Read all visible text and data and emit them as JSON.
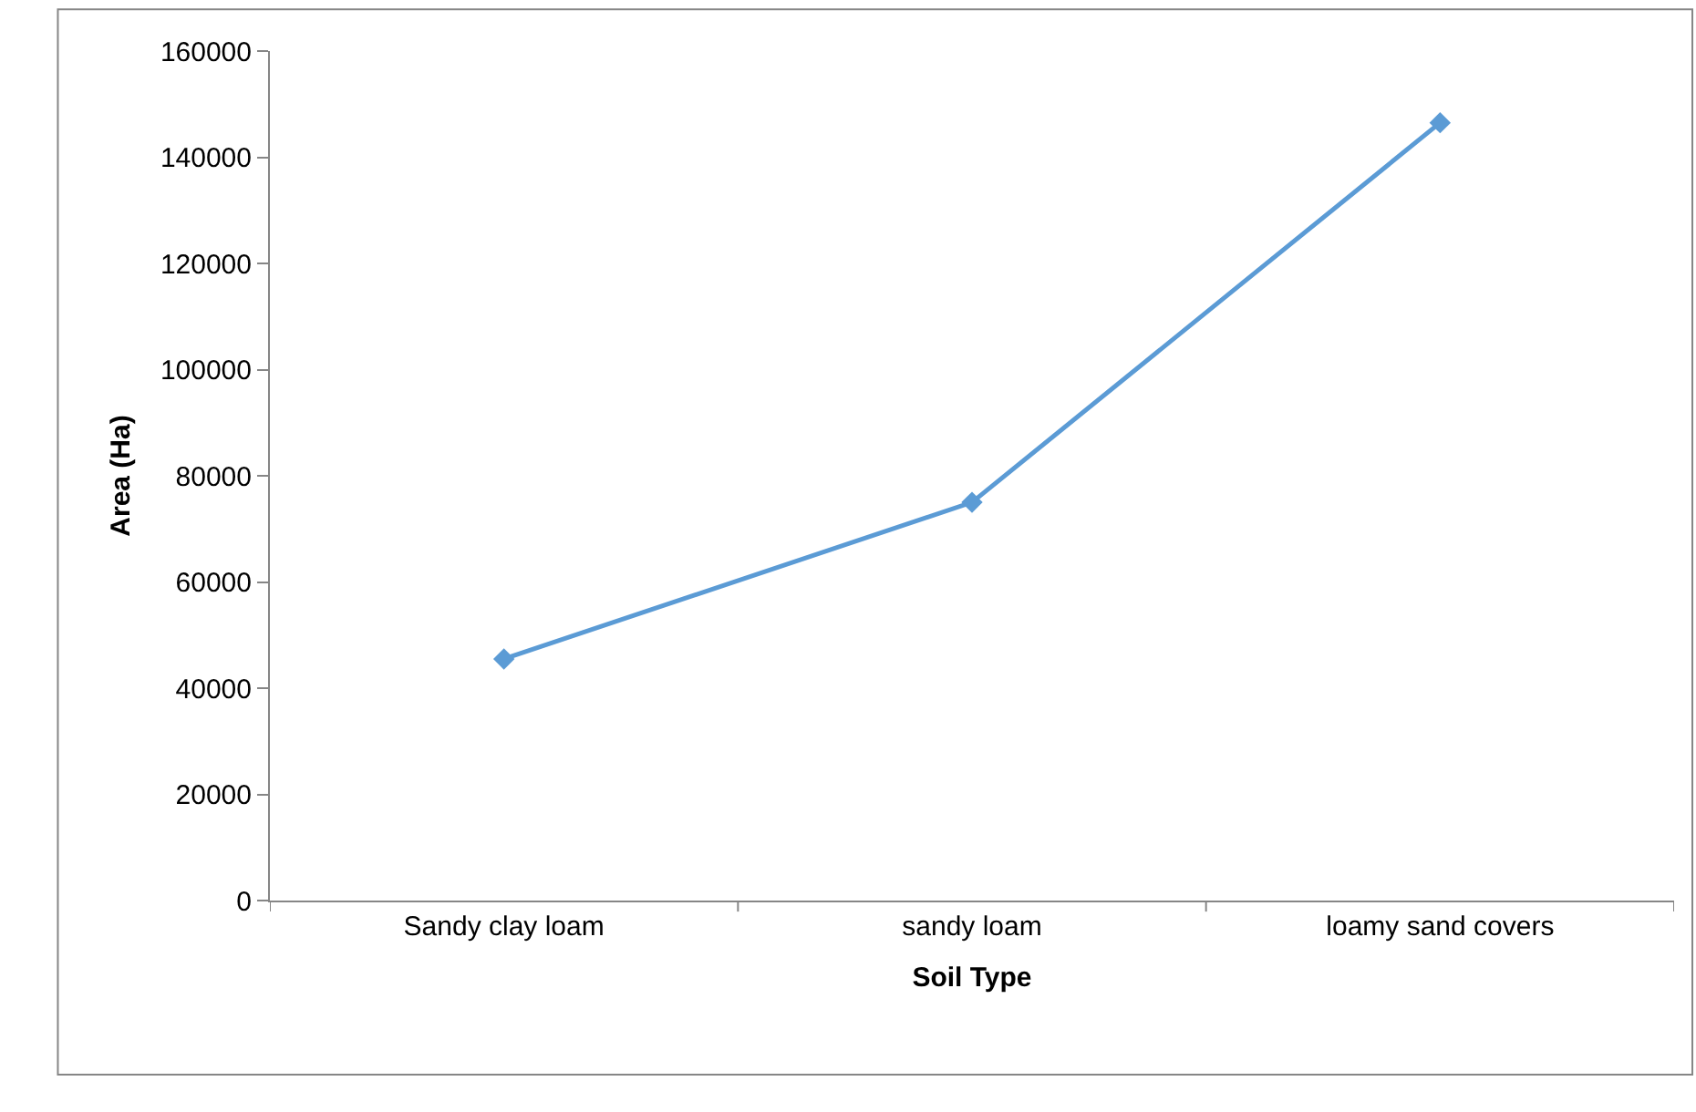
{
  "chart_data": {
    "type": "line",
    "xlabel": "Soil Type",
    "ylabel": "Area (Ha)",
    "categories": [
      "Sandy clay loam",
      "sandy loam",
      "loamy sand covers"
    ],
    "series": [
      {
        "color": "#5b9bd5",
        "values": [
          45500,
          75000,
          146500
        ]
      }
    ],
    "ylim": [
      0,
      160000
    ],
    "yticks": [
      0,
      20000,
      40000,
      60000,
      80000,
      100000,
      120000,
      140000,
      160000
    ],
    "grid": false,
    "legend": false,
    "marker": "diamond",
    "line_style": "solid"
  }
}
